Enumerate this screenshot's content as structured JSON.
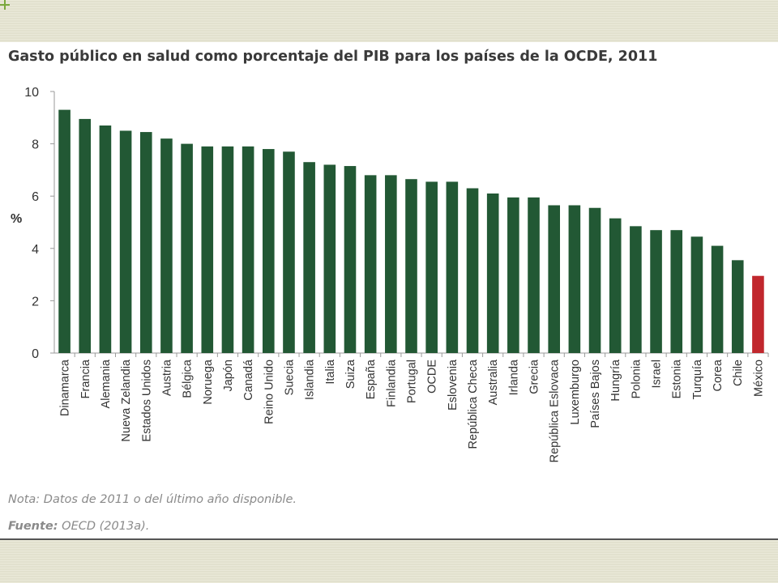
{
  "slide": {
    "title": "Gasto público en salud como porcentaje del PIB para los países de la OCDE, 2011",
    "note": "Nota: Datos de 2011 o del último año disponible.",
    "source_label": "Fuente:",
    "source_text": "OECD (2013a)."
  },
  "colors": {
    "bar_default": "#225834",
    "bar_highlight": "#c1272d",
    "axis": "#9a9a9a",
    "text": "#333333"
  },
  "chart_data": {
    "type": "bar",
    "title": "Gasto público en salud como porcentaje del PIB para los países de la OCDE, 2011",
    "xlabel": "",
    "ylabel": "%",
    "ylim": [
      0,
      10
    ],
    "yticks": [
      0,
      2,
      4,
      6,
      8,
      10
    ],
    "grid": false,
    "highlight": "México",
    "categories": [
      "Dinamarca",
      "Francia",
      "Alemania",
      "Nueva Zelandia",
      "Estados Unidos",
      "Austria",
      "Bélgica",
      "Noruega",
      "Japón",
      "Canadá",
      "Reino Unido",
      "Suecia",
      "Islandia",
      "Italia",
      "Suiza",
      "España",
      "Finlandia",
      "Portugal",
      "OCDE",
      "Eslovenia",
      "República Checa",
      "Australia",
      "Irlanda",
      "Grecia",
      "República Eslovaca",
      "Luxemburgo",
      "Países Bajos",
      "Hungría",
      "Polonia",
      "Israel",
      "Estonia",
      "Turquía",
      "Corea",
      "Chile",
      "México"
    ],
    "values": [
      9.3,
      8.95,
      8.7,
      8.5,
      8.45,
      8.2,
      8.0,
      7.9,
      7.9,
      7.9,
      7.8,
      7.7,
      7.3,
      7.2,
      7.15,
      6.8,
      6.8,
      6.65,
      6.55,
      6.55,
      6.3,
      6.1,
      5.95,
      5.95,
      5.65,
      5.65,
      5.55,
      5.15,
      4.85,
      4.7,
      4.7,
      4.45,
      4.1,
      3.55,
      2.95
    ]
  }
}
